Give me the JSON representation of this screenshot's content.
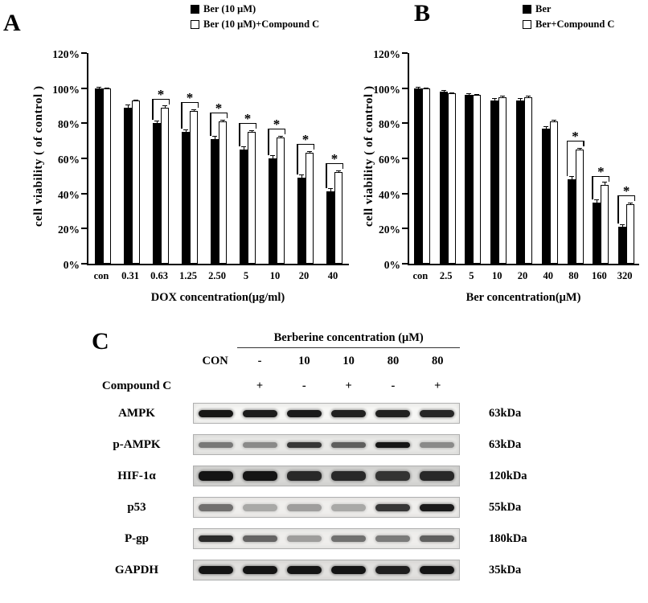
{
  "panels": {
    "a_label": "A",
    "b_label": "B",
    "c_label": "C"
  },
  "chart_data": [
    {
      "type": "bar",
      "panel": "A",
      "title": "",
      "categories": [
        "con",
        "0.31",
        "0.63",
        "1.25",
        "2.50",
        "5",
        "10",
        "20",
        "40"
      ],
      "series": [
        {
          "name": "Ber (10 μM)",
          "fill": "black",
          "values": [
            100,
            89,
            80,
            75,
            71,
            65,
            60,
            49,
            41
          ],
          "errors": [
            1,
            1.5,
            1.5,
            1.5,
            2,
            2,
            2,
            2,
            2
          ]
        },
        {
          "name": "Ber (10 μM)+Compound C",
          "fill": "white",
          "values": [
            100,
            93,
            89,
            87,
            81,
            75,
            72,
            63,
            52
          ],
          "errors": [
            1,
            1,
            1.5,
            1.5,
            1.5,
            1.5,
            1.5,
            1.5,
            1.5
          ]
        }
      ],
      "sig_indices": [
        2,
        3,
        4,
        5,
        6,
        7,
        8
      ],
      "sig_symbol": "*",
      "xlabel": "DOX concentration(μg/ml)",
      "ylabel": "cell viability ( of control )",
      "ylim": [
        0,
        120
      ],
      "yticks": [
        "0%",
        "20%",
        "40%",
        "60%",
        "80%",
        "100%",
        "120%"
      ],
      "grid": false,
      "legend_position": "top-right"
    },
    {
      "type": "bar",
      "panel": "B",
      "title": "",
      "categories": [
        "con",
        "2.5",
        "5",
        "10",
        "20",
        "40",
        "80",
        "160",
        "320"
      ],
      "series": [
        {
          "name": "Ber",
          "fill": "black",
          "values": [
            100,
            98,
            96,
            93,
            93,
            77,
            48,
            35,
            21
          ],
          "errors": [
            1,
            1,
            1,
            1.5,
            1.5,
            1.5,
            2,
            1.5,
            1.5
          ]
        },
        {
          "name": "Ber+Compound C",
          "fill": "white",
          "values": [
            100,
            97,
            96,
            95,
            95,
            81,
            65,
            45,
            34
          ],
          "errors": [
            1,
            1,
            1,
            1,
            1,
            1.5,
            1.5,
            2,
            1.5
          ]
        }
      ],
      "sig_indices": [
        6,
        7,
        8
      ],
      "sig_symbol": "*",
      "xlabel": "Ber concentration(μM)",
      "ylabel": "cell viability ( of control )",
      "ylim": [
        0,
        120
      ],
      "yticks": [
        "0%",
        "20%",
        "40%",
        "60%",
        "80%",
        "100%",
        "120%"
      ],
      "grid": false,
      "legend_position": "top-right"
    }
  ],
  "blot": {
    "header": "Berberine concentration (μM)",
    "lane_labels": [
      "CON",
      "-",
      "10",
      "10",
      "80",
      "80"
    ],
    "compound_c_label": "Compound C",
    "compound_c_values": [
      "",
      "+",
      "-",
      "+",
      "-",
      "+"
    ],
    "rows": [
      {
        "protein": "AMPK",
        "kda": "63kDa",
        "bg": "#f7f7f5",
        "band_h": 9,
        "bands": [
          0.95,
          0.92,
          0.93,
          0.9,
          0.9,
          0.88
        ]
      },
      {
        "protein": "p-AMPK",
        "kda": "63kDa",
        "bg": "#e9e9e7",
        "band_h": 7,
        "bands": [
          0.5,
          0.42,
          0.8,
          0.62,
          0.95,
          0.42
        ]
      },
      {
        "protein": "HIF-1α",
        "kda": "120kDa",
        "bg": "#d9d9d7",
        "band_h": 12,
        "bands": [
          0.95,
          0.95,
          0.85,
          0.85,
          0.8,
          0.85
        ]
      },
      {
        "protein": "p53",
        "kda": "55kDa",
        "bg": "#f0efed",
        "band_h": 9,
        "bands": [
          0.55,
          0.3,
          0.35,
          0.3,
          0.8,
          0.92
        ]
      },
      {
        "protein": "P-gp",
        "kda": "180kDa",
        "bg": "#efeeec",
        "band_h": 8,
        "bands": [
          0.85,
          0.6,
          0.35,
          0.55,
          0.5,
          0.62
        ]
      },
      {
        "protein": "GAPDH",
        "kda": "35kDa",
        "bg": "#e2e1df",
        "band_h": 10,
        "bands": [
          0.95,
          0.95,
          0.95,
          0.95,
          0.9,
          0.95
        ]
      }
    ]
  }
}
